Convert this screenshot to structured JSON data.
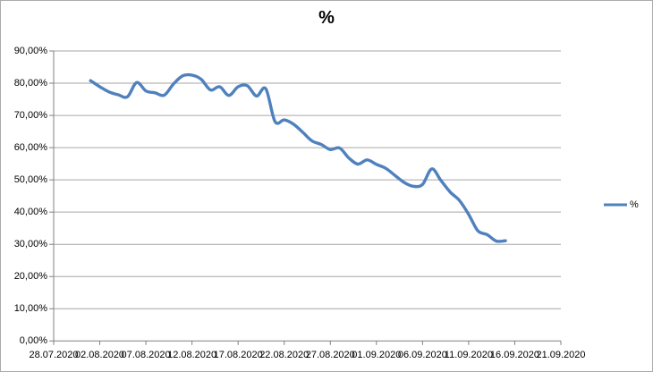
{
  "chart": {
    "title": "%",
    "colors": {
      "line": "#4F81BD",
      "gridline": "#A6A6A6",
      "axis": "#808080",
      "text": "#000000",
      "border": "#ABABAB",
      "background": "#FFFFFF"
    }
  },
  "chart_data": {
    "type": "line",
    "smoothed": true,
    "title": "%",
    "xlabel": "",
    "ylabel": "",
    "ylim": [
      0,
      90
    ],
    "y_step": 10,
    "grid": true,
    "legend_position": "right",
    "y_tick_labels": [
      "0,00%",
      "10,00%",
      "20,00%",
      "30,00%",
      "40,00%",
      "50,00%",
      "60,00%",
      "70,00%",
      "80,00%",
      "90,00%"
    ],
    "x_tick_labels": [
      "28.07.2020",
      "02.08.2020",
      "07.08.2020",
      "12.08.2020",
      "17.08.2020",
      "22.08.2020",
      "27.08.2020",
      "01.09.2020",
      "06.09.2020",
      "11.09.2020",
      "16.09.2020",
      "21.09.2020"
    ],
    "x_axis": {
      "first_tick_date": "28.07.2020",
      "last_tick_date": "21.09.2020",
      "tick_interval_days": 5
    },
    "series": [
      {
        "name": "%",
        "start_offset_days_from_first_tick": 4,
        "dates": [
          "01.08.2020",
          "02.08.2020",
          "03.08.2020",
          "04.08.2020",
          "05.08.2020",
          "06.08.2020",
          "07.08.2020",
          "08.08.2020",
          "09.08.2020",
          "10.08.2020",
          "11.08.2020",
          "12.08.2020",
          "13.08.2020",
          "14.08.2020",
          "15.08.2020",
          "16.08.2020",
          "17.08.2020",
          "18.08.2020",
          "19.08.2020",
          "20.08.2020",
          "21.08.2020",
          "22.08.2020",
          "23.08.2020",
          "24.08.2020",
          "25.08.2020",
          "26.08.2020",
          "27.08.2020",
          "28.08.2020",
          "29.08.2020",
          "30.08.2020",
          "31.08.2020",
          "01.09.2020",
          "02.09.2020",
          "03.09.2020",
          "04.09.2020",
          "05.09.2020",
          "06.09.2020",
          "07.09.2020",
          "08.09.2020",
          "09.09.2020",
          "10.09.2020",
          "11.09.2020",
          "12.09.2020",
          "13.09.2020",
          "14.09.2020",
          "15.09.2020"
        ],
        "values": [
          80.8,
          78.9,
          77.3,
          76.4,
          75.8,
          80.2,
          77.6,
          77.0,
          76.3,
          79.8,
          82.3,
          82.5,
          81.2,
          77.9,
          78.9,
          76.2,
          78.9,
          79.2,
          76.0,
          78.3,
          68.1,
          68.6,
          67.3,
          64.8,
          62.1,
          61.0,
          59.4,
          59.9,
          56.8,
          54.9,
          56.2,
          54.8,
          53.6,
          51.4,
          49.2,
          48.0,
          48.6,
          53.4,
          49.8,
          46.2,
          43.6,
          39.3,
          34.2,
          33.0,
          31.0,
          31.1
        ]
      }
    ]
  }
}
